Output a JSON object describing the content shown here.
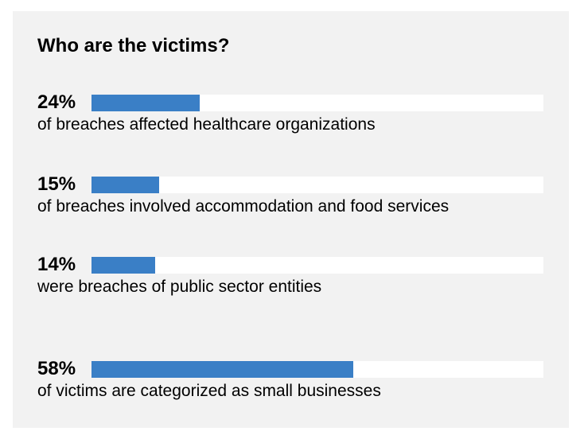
{
  "title": "Who are the victims?",
  "colors": {
    "bar": "#3a7fc6",
    "track": "#ffffff",
    "panel": "#f2f2f2"
  },
  "chart_data": {
    "type": "bar",
    "orientation": "horizontal",
    "ylim": [
      0,
      100
    ],
    "items": [
      {
        "label": "24%",
        "value": 24,
        "description": "of breaches affected healthcare organizations"
      },
      {
        "label": "15%",
        "value": 15,
        "description": "of breaches involved accommodation and food services"
      },
      {
        "label": "14%",
        "value": 14,
        "description": "were breaches of public sector entities"
      },
      {
        "label": "58%",
        "value": 58,
        "description": "of victims are categorized as small businesses"
      }
    ]
  }
}
